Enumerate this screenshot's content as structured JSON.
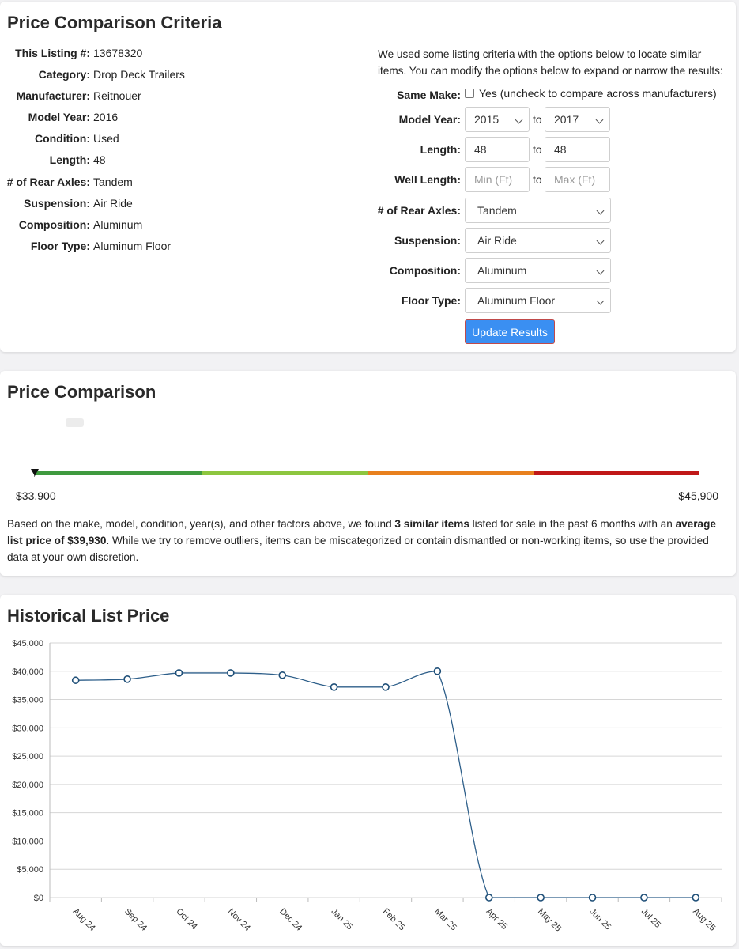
{
  "criteria": {
    "title": "Price Comparison Criteria",
    "listing": [
      {
        "label": "This Listing #:",
        "value": "13678320"
      },
      {
        "label": "Category:",
        "value": "Drop Deck Trailers"
      },
      {
        "label": "Manufacturer:",
        "value": "Reitnouer"
      },
      {
        "label": "Model Year:",
        "value": "2016"
      },
      {
        "label": "Condition:",
        "value": "Used"
      },
      {
        "label": "Length:",
        "value": "48"
      },
      {
        "label": "# of Rear Axles:",
        "value": "Tandem"
      },
      {
        "label": "Suspension:",
        "value": "Air Ride"
      },
      {
        "label": "Composition:",
        "value": "Aluminum"
      },
      {
        "label": "Floor Type:",
        "value": "Aluminum Floor"
      }
    ],
    "intro": "We used some listing criteria with the options below to locate similar items. You can modify the options below to expand or narrow the results:",
    "form": {
      "same_make_label": "Same Make:",
      "same_make_checked": false,
      "same_make_text": "Yes (uncheck to compare across manufacturers)",
      "model_year_label": "Model Year:",
      "model_year_from": "2015",
      "model_year_to": "2017",
      "to_text": "to",
      "length_label": "Length:",
      "length_from": "48",
      "length_to": "48",
      "well_length_label": "Well Length:",
      "well_length_min_placeholder": "Min (Ft)",
      "well_length_max_placeholder": "Max (Ft)",
      "rear_axles_label": "# of Rear Axles:",
      "rear_axles_value": "Tandem",
      "suspension_label": "Suspension:",
      "suspension_value": "Air Ride",
      "composition_label": "Composition:",
      "composition_value": "Aluminum",
      "floor_type_label": "Floor Type:",
      "floor_type_value": "Aluminum Floor",
      "update_button": "Update Results"
    }
  },
  "comparison": {
    "title": "Price Comparison",
    "min_price": "$33,900",
    "max_price": "$45,900",
    "scale_colors": [
      "#3f9a3f",
      "#8dc63f",
      "#e8801e",
      "#c01818"
    ],
    "summary_before": "Based on the make, model, condition, year(s), and other factors above, we found ",
    "summary_count": "3 similar items",
    "summary_middle": " listed for sale in the past 6 months with an ",
    "summary_avg": "average list price of $39,930",
    "summary_after": ". While we try to remove outliers, items can be miscategorized or contain dismantled or non-working items, so use the provided data at your own discretion."
  },
  "history": {
    "title": "Historical List Price"
  },
  "chart_data": {
    "type": "line",
    "title": "",
    "xlabel": "",
    "ylabel": "",
    "categories": [
      "Aug 24",
      "Sep 24",
      "Oct 24",
      "Nov 24",
      "Dec 24",
      "Jan 25",
      "Feb 25",
      "Mar 25",
      "Apr 25",
      "May 25",
      "Jun 25",
      "Jul 25",
      "Aug 25"
    ],
    "values": [
      38400,
      38600,
      39700,
      39700,
      39300,
      37200,
      37200,
      40000,
      0,
      0,
      0,
      0,
      0
    ],
    "ylim": [
      0,
      45000
    ],
    "yticks": [
      "$0",
      "$5,000",
      "$10,000",
      "$15,000",
      "$20,000",
      "$25,000",
      "$30,000",
      "$35,000",
      "$40,000",
      "$45,000"
    ],
    "grid": true,
    "line_color": "#2e5f8a"
  }
}
